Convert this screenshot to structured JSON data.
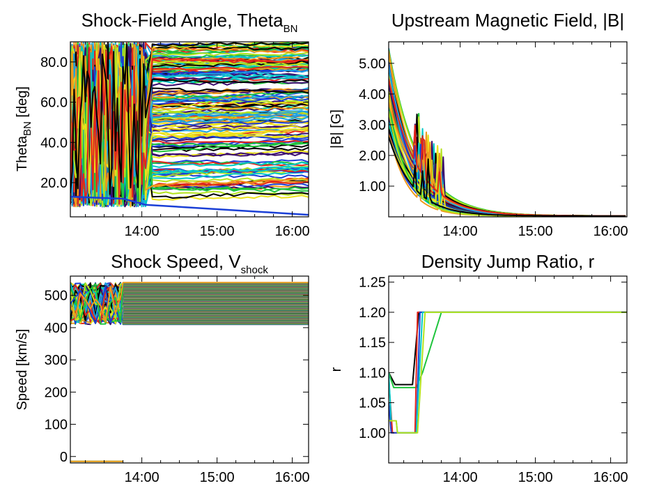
{
  "colors": {
    "palette": [
      "#3a0a6e",
      "#1a3fd6",
      "#1fa3e0",
      "#00c8c8",
      "#1ec43c",
      "#b4e31e",
      "#ece21a",
      "#f09a1c",
      "#e2261c",
      "#000000"
    ]
  },
  "chart_data": [
    {
      "id": "theta",
      "type": "line",
      "title": "Shock-Field Angle, Theta",
      "title_sub": "BN",
      "ylabel": "Theta",
      "ylabel_sub": "BN",
      "ylabel_suffix": " [deg]",
      "xlim": [
        "13:03",
        "16:13"
      ],
      "ylim": [
        3,
        90
      ],
      "xticks": [
        "14:00",
        "15:00",
        "16:00"
      ],
      "yticks": [
        20,
        40,
        60,
        80
      ],
      "ytick_labels": [
        "20.0",
        "40.0",
        "60.0",
        "80.0"
      ],
      "series_count": 160,
      "description_ranges": {
        "disordered_until": "14:03",
        "final_values_range": [
          8,
          89
        ]
      }
    },
    {
      "id": "bfield",
      "type": "line",
      "title": "Upstream Magnetic Field, |B|",
      "ylabel": "|B| [G]",
      "xlim": [
        "13:03",
        "16:13"
      ],
      "ylim": [
        0,
        5.7
      ],
      "xticks": [
        "14:00",
        "15:00",
        "16:00"
      ],
      "yticks": [
        1,
        2,
        3,
        4,
        5
      ],
      "ytick_labels": [
        "1.00",
        "2.00",
        "3.00",
        "4.00",
        "5.00"
      ],
      "series_count": 60,
      "description_ranges": {
        "start_range": [
          2.6,
          5.5
        ],
        "end_value": 0.03
      }
    },
    {
      "id": "speed",
      "type": "line",
      "title": "Shock Speed, V",
      "title_sub": "shock",
      "ylabel": "Speed [km/s]",
      "xlim": [
        "13:03",
        "16:13"
      ],
      "ylim": [
        -20,
        560
      ],
      "xticks": [
        "14:00",
        "15:00",
        "16:00"
      ],
      "yticks": [
        0,
        100,
        200,
        300,
        400,
        500
      ],
      "ytick_labels": [
        "0",
        "100",
        "200",
        "300",
        "400",
        "500"
      ],
      "series_count": 120,
      "description_ranges": {
        "flat_range": [
          410,
          540
        ],
        "transition_time": "13:45",
        "baseline": -15
      }
    },
    {
      "id": "ratio",
      "type": "line",
      "title": "Density Jump Ratio, r",
      "ylabel": "r",
      "xlim": [
        "13:03",
        "16:13"
      ],
      "ylim": [
        0.95,
        1.26
      ],
      "xticks": [
        "14:00",
        "15:00",
        "16:00"
      ],
      "yticks": [
        1.0,
        1.05,
        1.1,
        1.15,
        1.2,
        1.25
      ],
      "ytick_labels": [
        "1.00",
        "1.05",
        "1.10",
        "1.15",
        "1.20",
        "1.25"
      ],
      "series": [
        {
          "points": [
            [
              "13:03",
              1.1
            ],
            [
              "13:08",
              1.08
            ],
            [
              "13:22",
              1.08
            ],
            [
              "13:27",
              1.2
            ],
            [
              "16:13",
              1.2
            ]
          ]
        },
        {
          "points": [
            [
              "13:03",
              1.1
            ],
            [
              "13:07",
              1.075
            ],
            [
              "13:25",
              1.075
            ],
            [
              "13:30",
              1.1
            ],
            [
              "13:45",
              1.2
            ],
            [
              "16:13",
              1.2
            ]
          ]
        },
        {
          "points": [
            [
              "13:03",
              1.09
            ],
            [
              "13:06",
              1.0
            ],
            [
              "13:24",
              1.0
            ],
            [
              "13:26",
              1.2
            ],
            [
              "16:13",
              1.2
            ]
          ]
        },
        {
          "points": [
            [
              "13:03",
              1.05
            ],
            [
              "13:05",
              1.0
            ],
            [
              "13:25",
              1.0
            ],
            [
              "13:28",
              1.2
            ],
            [
              "16:13",
              1.2
            ]
          ]
        },
        {
          "points": [
            [
              "13:03",
              1.1
            ],
            [
              "13:05",
              1.02
            ],
            [
              "13:09",
              1.02
            ],
            [
              "13:10",
              1.0
            ],
            [
              "13:25",
              1.0
            ],
            [
              "13:30",
              1.2
            ],
            [
              "16:13",
              1.2
            ]
          ]
        },
        {
          "points": [
            [
              "13:03",
              1.02
            ],
            [
              "13:09",
              1.02
            ],
            [
              "13:10",
              1.0
            ],
            [
              "13:26",
              1.0
            ],
            [
              "13:32",
              1.2
            ],
            [
              "16:13",
              1.2
            ]
          ]
        }
      ]
    }
  ]
}
